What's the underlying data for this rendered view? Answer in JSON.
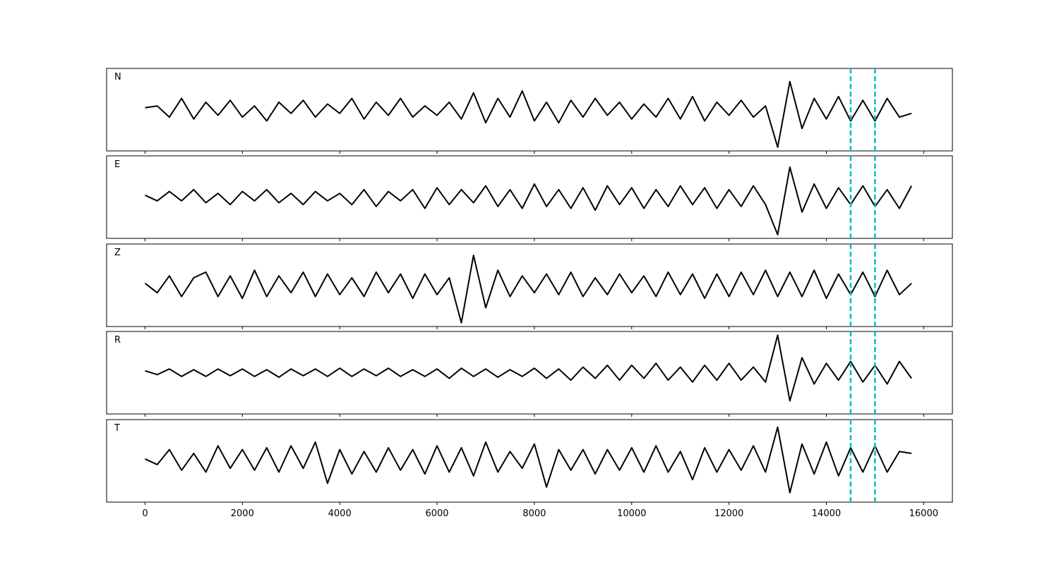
{
  "chart_data": [
    {
      "type": "line",
      "label": "N",
      "color": "#000000",
      "x": [
        0,
        250,
        500,
        750,
        1000,
        1250,
        1500,
        1750,
        2000,
        2250,
        2500,
        2750,
        3000,
        3250,
        3500,
        3750,
        4000,
        4250,
        4500,
        4750,
        5000,
        5250,
        5500,
        5750,
        6000,
        6250,
        6500,
        6750,
        7000,
        7250,
        7500,
        7750,
        8000,
        8250,
        8500,
        8750,
        9000,
        9250,
        9500,
        9750,
        10000,
        10250,
        10500,
        10750,
        11000,
        11250,
        11500,
        11750,
        12000,
        12250,
        12500,
        12750,
        13000,
        13250,
        13500,
        13750,
        14000,
        14250,
        14500,
        14750,
        15000,
        15250,
        15500,
        15750
      ],
      "values": [
        0.05,
        0.1,
        -0.2,
        0.3,
        -0.25,
        0.2,
        -0.15,
        0.25,
        -0.2,
        0.1,
        -0.3,
        0.2,
        -0.1,
        0.25,
        -0.2,
        0.15,
        -0.1,
        0.3,
        -0.25,
        0.2,
        -0.15,
        0.3,
        -0.2,
        0.1,
        -0.15,
        0.2,
        -0.25,
        0.45,
        -0.35,
        0.3,
        -0.2,
        0.5,
        -0.3,
        0.2,
        -0.35,
        0.25,
        -0.2,
        0.3,
        -0.15,
        0.2,
        -0.25,
        0.15,
        -0.2,
        0.3,
        -0.25,
        0.35,
        -0.3,
        0.2,
        -0.15,
        0.25,
        -0.2,
        0.1,
        -1.0,
        0.75,
        -0.5,
        0.3,
        -0.25,
        0.35,
        -0.3,
        0.25,
        -0.3,
        0.3,
        -0.2,
        -0.1
      ],
      "xlim": [
        -790,
        16590
      ],
      "ylim": [
        -1.1,
        1.1
      ],
      "xticks": [
        0,
        2000,
        4000,
        6000,
        8000,
        10000,
        12000,
        14000,
        16000
      ],
      "vlines": [
        14500,
        15000
      ],
      "vline_color": "#00bfbf"
    },
    {
      "type": "line",
      "label": "E",
      "color": "#000000",
      "x": [
        0,
        250,
        500,
        750,
        1000,
        1250,
        1500,
        1750,
        2000,
        2250,
        2500,
        2750,
        3000,
        3250,
        3500,
        3750,
        4000,
        4250,
        4500,
        4750,
        5000,
        5250,
        5500,
        5750,
        6000,
        6250,
        6500,
        6750,
        7000,
        7250,
        7500,
        7750,
        8000,
        8250,
        8500,
        8750,
        9000,
        9250,
        9500,
        9750,
        10000,
        10250,
        10500,
        10750,
        11000,
        11250,
        11500,
        11750,
        12000,
        12250,
        12500,
        12750,
        13000,
        13250,
        13500,
        13750,
        14000,
        14250,
        14500,
        14750,
        15000,
        15250,
        15500,
        15750
      ],
      "values": [
        0.05,
        -0.1,
        0.15,
        -0.1,
        0.2,
        -0.15,
        0.1,
        -0.2,
        0.15,
        -0.1,
        0.2,
        -0.15,
        0.1,
        -0.2,
        0.15,
        -0.1,
        0.1,
        -0.2,
        0.2,
        -0.25,
        0.15,
        -0.1,
        0.2,
        -0.3,
        0.25,
        -0.2,
        0.2,
        -0.15,
        0.3,
        -0.25,
        0.2,
        -0.3,
        0.35,
        -0.25,
        0.2,
        -0.3,
        0.25,
        -0.35,
        0.3,
        -0.2,
        0.25,
        -0.3,
        0.2,
        -0.25,
        0.3,
        -0.2,
        0.25,
        -0.3,
        0.2,
        -0.25,
        0.3,
        -0.2,
        -1.0,
        0.8,
        -0.4,
        0.35,
        -0.3,
        0.25,
        -0.2,
        0.3,
        -0.25,
        0.2,
        -0.3,
        0.3
      ],
      "xlim": [
        -790,
        16590
      ],
      "ylim": [
        -1.1,
        1.1
      ],
      "xticks": [
        0,
        2000,
        4000,
        6000,
        8000,
        10000,
        12000,
        14000,
        16000
      ],
      "vlines": [
        14500,
        15000
      ],
      "vline_color": "#00bfbf"
    },
    {
      "type": "line",
      "label": "Z",
      "color": "#000000",
      "x": [
        0,
        250,
        500,
        750,
        1000,
        1250,
        1500,
        1750,
        2000,
        2250,
        2500,
        2750,
        3000,
        3250,
        3500,
        3750,
        4000,
        4250,
        4500,
        4750,
        5000,
        5250,
        5500,
        5750,
        6000,
        6250,
        6500,
        6750,
        7000,
        7250,
        7500,
        7750,
        8000,
        8250,
        8500,
        8750,
        9000,
        9250,
        9500,
        9750,
        10000,
        10250,
        10500,
        10750,
        11000,
        11250,
        11500,
        11750,
        12000,
        12250,
        12500,
        12750,
        13000,
        13250,
        13500,
        13750,
        14000,
        14250,
        14500,
        14750,
        15000,
        15250,
        15500,
        15750
      ],
      "values": [
        0.05,
        -0.2,
        0.25,
        -0.3,
        0.2,
        0.35,
        -0.3,
        0.25,
        -0.35,
        0.4,
        -0.3,
        0.25,
        -0.2,
        0.35,
        -0.3,
        0.3,
        -0.25,
        0.2,
        -0.3,
        0.35,
        -0.2,
        0.3,
        -0.35,
        0.3,
        -0.25,
        0.2,
        -1.0,
        0.8,
        -0.6,
        0.4,
        -0.3,
        0.25,
        -0.2,
        0.3,
        -0.25,
        0.35,
        -0.3,
        0.2,
        -0.25,
        0.3,
        -0.2,
        0.25,
        -0.3,
        0.35,
        -0.25,
        0.3,
        -0.35,
        0.3,
        -0.3,
        0.35,
        -0.25,
        0.4,
        -0.3,
        0.35,
        -0.3,
        0.4,
        -0.35,
        0.3,
        -0.25,
        0.35,
        -0.3,
        0.4,
        -0.25,
        0.05
      ],
      "xlim": [
        -790,
        16590
      ],
      "ylim": [
        -1.1,
        1.1
      ],
      "xticks": [
        0,
        2000,
        4000,
        6000,
        8000,
        10000,
        12000,
        14000,
        16000
      ],
      "vlines": [
        14500,
        15000
      ],
      "vline_color": "#00bfbf"
    },
    {
      "type": "line",
      "label": "R",
      "color": "#000000",
      "x": [
        0,
        250,
        500,
        750,
        1000,
        1250,
        1500,
        1750,
        2000,
        2250,
        2500,
        2750,
        3000,
        3250,
        3500,
        3750,
        4000,
        4250,
        4500,
        4750,
        5000,
        5250,
        5500,
        5750,
        6000,
        6250,
        6500,
        6750,
        7000,
        7250,
        7500,
        7750,
        8000,
        8250,
        8500,
        8750,
        9000,
        9250,
        9500,
        9750,
        10000,
        10250,
        10500,
        10750,
        11000,
        11250,
        11500,
        11750,
        12000,
        12250,
        12500,
        12750,
        13000,
        13250,
        13500,
        13750,
        14000,
        14250,
        14500,
        14750,
        15000,
        15250,
        15500,
        15750
      ],
      "values": [
        0.05,
        -0.05,
        0.1,
        -0.1,
        0.08,
        -0.1,
        0.1,
        -0.08,
        0.1,
        -0.1,
        0.08,
        -0.12,
        0.1,
        -0.08,
        0.1,
        -0.1,
        0.12,
        -0.1,
        0.1,
        -0.08,
        0.12,
        -0.1,
        0.08,
        -0.1,
        0.1,
        -0.15,
        0.12,
        -0.1,
        0.1,
        -0.12,
        0.08,
        -0.1,
        0.12,
        -0.15,
        0.1,
        -0.2,
        0.15,
        -0.15,
        0.2,
        -0.2,
        0.2,
        -0.15,
        0.25,
        -0.2,
        0.15,
        -0.25,
        0.2,
        -0.2,
        0.25,
        -0.2,
        0.15,
        -0.25,
        1.0,
        -0.75,
        0.4,
        -0.3,
        0.25,
        -0.2,
        0.3,
        -0.25,
        0.2,
        -0.3,
        0.3,
        -0.15
      ],
      "xlim": [
        -790,
        16590
      ],
      "ylim": [
        -1.1,
        1.1
      ],
      "xticks": [
        0,
        2000,
        4000,
        6000,
        8000,
        10000,
        12000,
        14000,
        16000
      ],
      "vlines": [
        14500,
        15000
      ],
      "vline_color": "#00bfbf"
    },
    {
      "type": "line",
      "label": "T",
      "color": "#000000",
      "x": [
        0,
        250,
        500,
        750,
        1000,
        1250,
        1500,
        1750,
        2000,
        2250,
        2500,
        2750,
        3000,
        3250,
        3500,
        3750,
        4000,
        4250,
        4500,
        4750,
        5000,
        5250,
        5500,
        5750,
        6000,
        6250,
        6500,
        6750,
        7000,
        7250,
        7500,
        7750,
        8000,
        8250,
        8500,
        8750,
        9000,
        9250,
        9500,
        9750,
        10000,
        10250,
        10500,
        10750,
        11000,
        11250,
        11500,
        11750,
        12000,
        12250,
        12500,
        12750,
        13000,
        13250,
        13500,
        13750,
        14000,
        14250,
        14500,
        14750,
        15000,
        15250,
        15500,
        15750
      ],
      "values": [
        0.05,
        -0.1,
        0.3,
        -0.25,
        0.2,
        -0.3,
        0.4,
        -0.2,
        0.3,
        -0.25,
        0.35,
        -0.3,
        0.4,
        -0.2,
        0.5,
        -0.6,
        0.3,
        -0.35,
        0.25,
        -0.3,
        0.35,
        -0.25,
        0.3,
        -0.35,
        0.4,
        -0.3,
        0.35,
        -0.4,
        0.5,
        -0.3,
        0.25,
        -0.2,
        0.45,
        -0.7,
        0.3,
        -0.25,
        0.3,
        -0.35,
        0.3,
        -0.25,
        0.35,
        -0.3,
        0.4,
        -0.3,
        0.25,
        -0.5,
        0.35,
        -0.3,
        0.3,
        -0.25,
        0.4,
        -0.3,
        0.9,
        -0.85,
        0.45,
        -0.35,
        0.5,
        -0.4,
        0.35,
        -0.3,
        0.4,
        -0.3,
        0.25,
        0.2
      ],
      "xlim": [
        -790,
        16590
      ],
      "ylim": [
        -1.1,
        1.1
      ],
      "xticks": [
        0,
        2000,
        4000,
        6000,
        8000,
        10000,
        12000,
        14000,
        16000
      ],
      "vlines": [
        14500,
        15000
      ],
      "vline_color": "#00bfbf"
    }
  ]
}
